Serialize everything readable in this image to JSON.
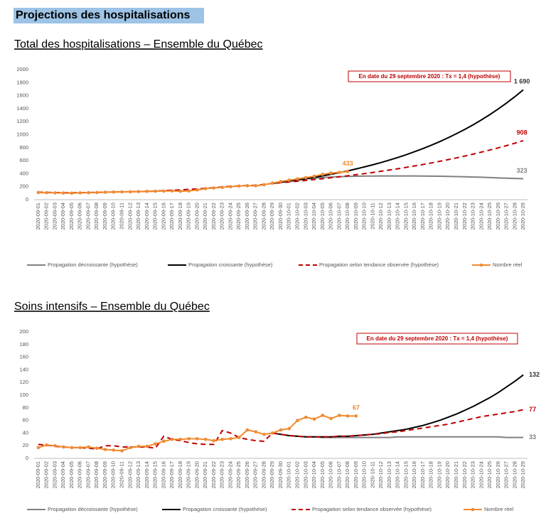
{
  "heading": "Projections des hospitalisations",
  "chart_data": [
    {
      "type": "line",
      "title": "Total des hospitalisations – Ensemble du Québec",
      "annotation": "En date du 29 septembre 2020 : Tx = 1,4 (hypothèse)",
      "categories": [
        "2020-09-01",
        "2020-09-02",
        "2020-09-03",
        "2020-09-04",
        "2020-09-05",
        "2020-09-06",
        "2020-09-07",
        "2020-09-08",
        "2020-09-09",
        "2020-09-10",
        "2020-09-11",
        "2020-09-12",
        "2020-09-13",
        "2020-09-14",
        "2020-09-15",
        "2020-09-16",
        "2020-09-17",
        "2020-09-18",
        "2020-09-19",
        "2020-09-20",
        "2020-09-21",
        "2020-09-22",
        "2020-09-23",
        "2020-09-24",
        "2020-09-25",
        "2020-09-26",
        "2020-09-27",
        "2020-09-28",
        "2020-09-29",
        "2020-09-30",
        "2020-10-01",
        "2020-10-02",
        "2020-10-03",
        "2020-10-04",
        "2020-10-05",
        "2020-10-06",
        "2020-10-07",
        "2020-10-08",
        "2020-10-09",
        "2020-10-10",
        "2020-10-11",
        "2020-10-12",
        "2020-10-13",
        "2020-10-14",
        "2020-10-15",
        "2020-10-16",
        "2020-10-17",
        "2020-10-18",
        "2020-10-19",
        "2020-10-20",
        "2020-10-21",
        "2020-10-22",
        "2020-10-23",
        "2020-10-24",
        "2020-10-25",
        "2020-10-26",
        "2020-10-27",
        "2020-10-28",
        "2020-10-29"
      ],
      "ylim": [
        0,
        2000
      ],
      "yticks": [
        0,
        200,
        400,
        600,
        800,
        1000,
        1200,
        1400,
        1600,
        1800,
        2000
      ],
      "grid": false,
      "end_labels": true,
      "series": [
        {
          "name": "Propagation décroissante (hypothèse)",
          "color": "#808080",
          "values": [
            null,
            null,
            null,
            null,
            null,
            null,
            null,
            null,
            null,
            null,
            null,
            null,
            null,
            null,
            null,
            null,
            null,
            null,
            null,
            null,
            null,
            null,
            null,
            null,
            null,
            null,
            null,
            null,
            250,
            270,
            290,
            305,
            320,
            330,
            340,
            348,
            354,
            358,
            361,
            363,
            364,
            365,
            365,
            365,
            365,
            365,
            364,
            362,
            360,
            358,
            355,
            352,
            349,
            345,
            340,
            335,
            330,
            326,
            323
          ]
        },
        {
          "name": "Propagation croissante (hypothèse)",
          "color": "#000000",
          "values": [
            null,
            null,
            null,
            null,
            null,
            null,
            null,
            null,
            null,
            null,
            null,
            null,
            null,
            null,
            null,
            null,
            null,
            null,
            null,
            null,
            null,
            null,
            null,
            null,
            null,
            null,
            null,
            null,
            250,
            266,
            284,
            303,
            323,
            344,
            366,
            390,
            416,
            443,
            473,
            504,
            537,
            572,
            610,
            650,
            692,
            738,
            786,
            838,
            893,
            952,
            1015,
            1081,
            1152,
            1228,
            1309,
            1395,
            1487,
            1585,
            1690
          ],
          "value_labels": [
            null,
            null,
            null,
            null,
            null,
            null,
            null,
            null,
            null,
            null,
            null,
            null,
            null,
            null,
            null,
            null,
            null,
            null,
            null,
            null,
            null,
            null,
            null,
            null,
            null,
            null,
            null,
            null,
            null,
            null,
            null,
            null,
            null,
            null,
            null,
            null,
            null,
            null,
            null,
            null,
            null,
            null,
            null,
            null,
            null,
            null,
            null,
            null,
            null,
            null,
            null,
            null,
            null,
            null,
            null,
            null,
            null,
            null,
            "1 690"
          ]
        },
        {
          "name": "Propagation selon tendance observée (hypothèse)",
          "color": "#c00000",
          "dashed": true,
          "values": [
            115,
            112,
            110,
            108,
            106,
            108,
            110,
            112,
            115,
            118,
            120,
            122,
            125,
            128,
            132,
            138,
            145,
            150,
            160,
            165,
            175,
            185,
            195,
            205,
            212,
            218,
            222,
            235,
            250,
            261,
            272,
            284,
            297,
            310,
            323,
            338,
            352,
            368,
            384,
            401,
            418,
            437,
            456,
            476,
            497,
            519,
            541,
            565,
            590,
            616,
            643,
            671,
            701,
            732,
            764,
            797,
            832,
            869,
            908
          ]
        },
        {
          "name": "Nombre réel",
          "color": "#f08a30",
          "markers": true,
          "values": [
            110,
            108,
            105,
            103,
            100,
            105,
            108,
            110,
            115,
            118,
            120,
            122,
            125,
            128,
            130,
            132,
            135,
            130,
            135,
            150,
            170,
            180,
            190,
            200,
            210,
            215,
            215,
            230,
            255,
            280,
            300,
            320,
            340,
            360,
            390,
            410,
            420,
            433,
            null,
            null,
            null,
            null,
            null,
            null,
            null,
            null,
            null,
            null,
            null,
            null,
            null,
            null,
            null,
            null,
            null,
            null,
            null,
            null,
            null
          ]
        }
      ]
    },
    {
      "type": "line",
      "title": "Soins intensifs – Ensemble du Québec",
      "annotation": "En date du 29 septembre 2020 : Tx = 1,4 (hypothèse)",
      "categories": [
        "2020-09-01",
        "2020-09-02",
        "2020-09-03",
        "2020-09-04",
        "2020-09-05",
        "2020-09-06",
        "2020-09-07",
        "2020-09-08",
        "2020-09-09",
        "2020-09-10",
        "2020-09-11",
        "2020-09-12",
        "2020-09-13",
        "2020-09-14",
        "2020-09-15",
        "2020-09-16",
        "2020-09-17",
        "2020-09-18",
        "2020-09-19",
        "2020-09-20",
        "2020-09-21",
        "2020-09-22",
        "2020-09-23",
        "2020-09-24",
        "2020-09-25",
        "2020-09-26",
        "2020-09-27",
        "2020-09-28",
        "2020-09-29",
        "2020-09-30",
        "2020-10-01",
        "2020-10-02",
        "2020-10-03",
        "2020-10-04",
        "2020-10-05",
        "2020-10-06",
        "2020-10-07",
        "2020-10-08",
        "2020-10-09",
        "2020-10-10",
        "2020-10-11",
        "2020-10-12",
        "2020-10-13",
        "2020-10-14",
        "2020-10-15",
        "2020-10-16",
        "2020-10-17",
        "2020-10-18",
        "2020-10-19",
        "2020-10-20",
        "2020-10-21",
        "2020-10-22",
        "2020-10-23",
        "2020-10-24",
        "2020-10-25",
        "2020-10-26",
        "2020-10-27",
        "2020-10-28",
        "2020-10-29"
      ],
      "ylim": [
        0,
        200
      ],
      "yticks": [
        0,
        20,
        40,
        60,
        80,
        100,
        120,
        140,
        160,
        180,
        200
      ],
      "grid": false,
      "end_labels": true,
      "series": [
        {
          "name": "Propagation décroissante (hypothèse)",
          "color": "#808080",
          "values": [
            null,
            null,
            null,
            null,
            null,
            null,
            null,
            null,
            null,
            null,
            null,
            null,
            null,
            null,
            null,
            null,
            null,
            null,
            null,
            null,
            null,
            null,
            null,
            null,
            null,
            null,
            null,
            null,
            40,
            38,
            36,
            35,
            34,
            34,
            33,
            33,
            33,
            33,
            33,
            33,
            33,
            33,
            33,
            34,
            34,
            34,
            34,
            34,
            34,
            34,
            34,
            34,
            34,
            34,
            34,
            34,
            33,
            33,
            33
          ]
        },
        {
          "name": "Propagation croissante (hypothèse)",
          "color": "#000000",
          "values": [
            null,
            null,
            null,
            null,
            null,
            null,
            null,
            null,
            null,
            null,
            null,
            null,
            null,
            null,
            null,
            null,
            null,
            null,
            null,
            null,
            null,
            null,
            null,
            null,
            null,
            null,
            null,
            null,
            40,
            38,
            36,
            35,
            34,
            34,
            34,
            34,
            35,
            35,
            36,
            37,
            38,
            40,
            42,
            44,
            46,
            49,
            52,
            56,
            60,
            65,
            70,
            76,
            82,
            89,
            96,
            104,
            113,
            122,
            132
          ]
        },
        {
          "name": "Propagation selon tendance observée (hypothèse)",
          "color": "#c00000",
          "dashed": true,
          "values": [
            22,
            21,
            19,
            18,
            17,
            17,
            16,
            15,
            20,
            20,
            18,
            18,
            18,
            18,
            16,
            35,
            30,
            28,
            25,
            23,
            22,
            22,
            44,
            40,
            33,
            30,
            28,
            27,
            40,
            38,
            36,
            35,
            34,
            34,
            34,
            34,
            35,
            35,
            36,
            37,
            38,
            39,
            41,
            42,
            44,
            46,
            48,
            50,
            52,
            54,
            57,
            60,
            63,
            66,
            68,
            70,
            72,
            74,
            77
          ]
        },
        {
          "name": "Nombre réel",
          "color": "#f08a30",
          "markers": true,
          "values": [
            17,
            21,
            20,
            18,
            17,
            17,
            18,
            16,
            14,
            13,
            12,
            17,
            19,
            19,
            23,
            27,
            30,
            30,
            31,
            31,
            30,
            28,
            30,
            31,
            33,
            45,
            42,
            38,
            40,
            45,
            47,
            60,
            65,
            62,
            68,
            63,
            68,
            67,
            67,
            null,
            null,
            null,
            null,
            null,
            null,
            null,
            null,
            null,
            null,
            null,
            null,
            null,
            null,
            null,
            null,
            null,
            null,
            null,
            null
          ]
        }
      ]
    }
  ]
}
